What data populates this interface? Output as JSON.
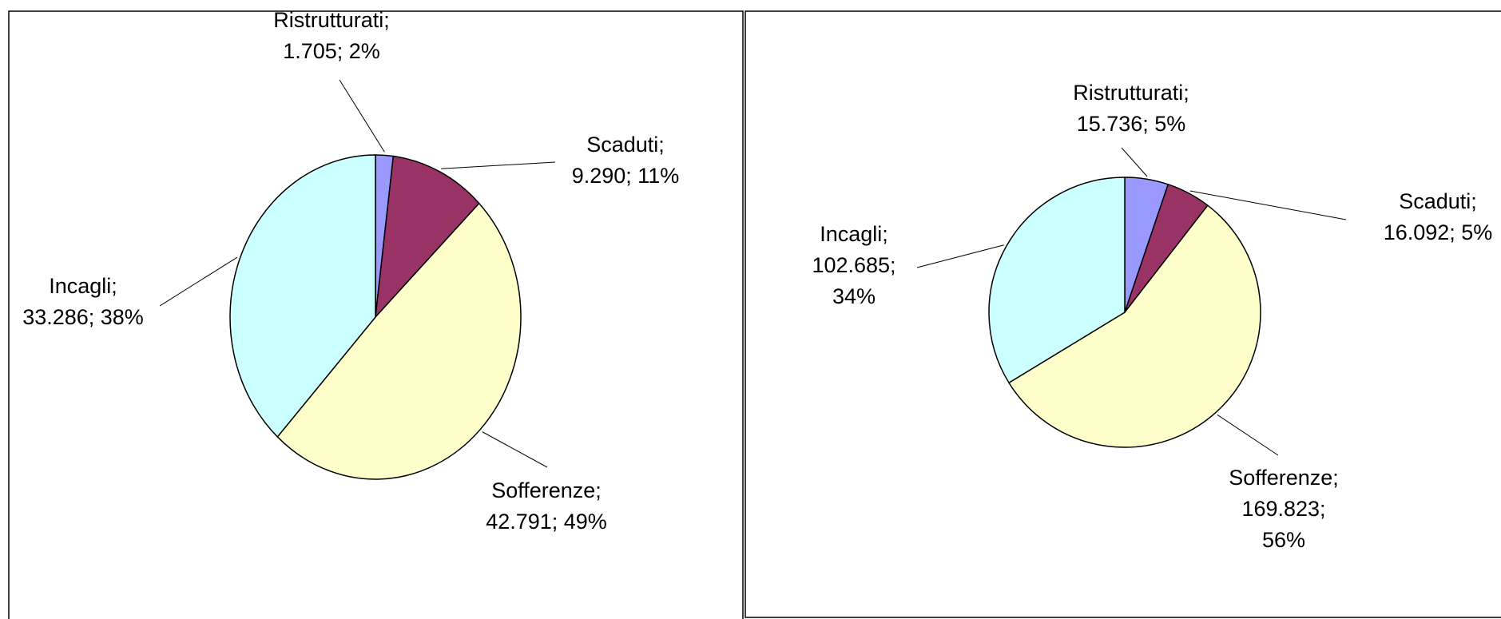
{
  "chart_data": [
    {
      "type": "pie",
      "categories": [
        "Ristrutturati;",
        "Scaduti;",
        "Sofferenze;",
        "Incagli;"
      ],
      "values": [
        1705,
        9290,
        42791,
        33286
      ],
      "value_labels": [
        [
          "1.705; 2%"
        ],
        [
          "9.290; 11%"
        ],
        [
          "42.791; 49%"
        ],
        [
          "33.286; 38%"
        ]
      ],
      "colors": [
        "#9999ff",
        "#993366",
        "#ffffcc",
        "#ccffff"
      ]
    },
    {
      "type": "pie",
      "categories": [
        "Ristrutturati;",
        "Scaduti;",
        "Sofferenze;",
        "Incagli;"
      ],
      "values": [
        15736,
        16092,
        169823,
        102685
      ],
      "value_labels": [
        [
          "15.736; 5%"
        ],
        [
          "16.092; 5%"
        ],
        [
          "169.823;",
          "56%"
        ],
        [
          "102.685;",
          "34%"
        ]
      ],
      "colors": [
        "#9999ff",
        "#993366",
        "#ffffcc",
        "#ccffff"
      ]
    }
  ]
}
